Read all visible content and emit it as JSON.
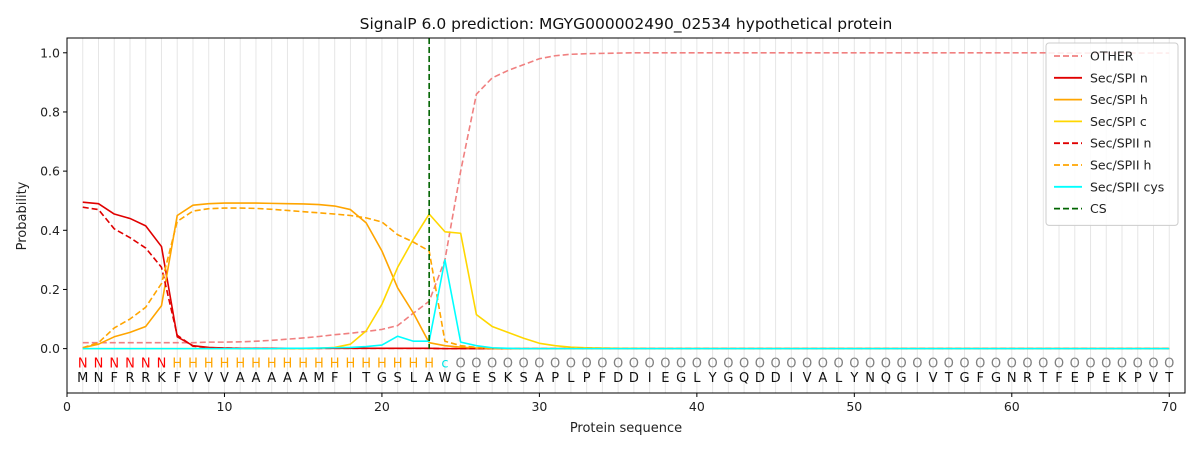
{
  "chart_data": {
    "type": "line",
    "title": "SignalP 6.0 prediction: MGYG000002490_02534 hypothetical protein",
    "xlabel": "Protein sequence",
    "ylabel": "Probability",
    "xlim": [
      0,
      71
    ],
    "ylim": [
      -0.15,
      1.05
    ],
    "xticks": [
      0,
      10,
      20,
      30,
      40,
      50,
      60,
      70
    ],
    "yticks": [
      0.0,
      0.2,
      0.4,
      0.6,
      0.8,
      1.0
    ],
    "ytick_labels": [
      "0.0",
      "0.2",
      "0.4",
      "0.6",
      "0.8",
      "1.0"
    ],
    "vertical_grid": true,
    "legend_position": "top-right",
    "sequence": [
      "M",
      "N",
      "F",
      "R",
      "R",
      "K",
      "F",
      "V",
      "V",
      "V",
      "A",
      "A",
      "A",
      "A",
      "A",
      "M",
      "F",
      "I",
      "T",
      "G",
      "S",
      "L",
      "A",
      "W",
      "G",
      "E",
      "S",
      "K",
      "S",
      "A",
      "P",
      "L",
      "P",
      "F",
      "D",
      "D",
      "I",
      "E",
      "G",
      "L",
      "Y",
      "G",
      "Q",
      "D",
      "D",
      "I",
      "V",
      "A",
      "L",
      "Y",
      "N",
      "Q",
      "G",
      "I",
      "V",
      "T",
      "G",
      "F",
      "G",
      "N",
      "R",
      "T",
      "F",
      "E",
      "P",
      "E",
      "K",
      "P",
      "V",
      "T"
    ],
    "region_labels": [
      "N",
      "N",
      "N",
      "N",
      "N",
      "N",
      "H",
      "H",
      "H",
      "H",
      "H",
      "H",
      "H",
      "H",
      "H",
      "H",
      "H",
      "H",
      "H",
      "H",
      "H",
      "H",
      "H",
      "C",
      "O",
      "O",
      "O",
      "O",
      "O",
      "O",
      "O",
      "O",
      "O",
      "O",
      "O",
      "O",
      "O",
      "O",
      "O",
      "O",
      "O",
      "O",
      "O",
      "O",
      "O",
      "O",
      "O",
      "O",
      "O",
      "O",
      "O",
      "O",
      "O",
      "O",
      "O",
      "O",
      "O",
      "O",
      "O",
      "O",
      "O",
      "O",
      "O",
      "O",
      "O",
      "O",
      "O",
      "O",
      "O",
      "O"
    ],
    "region_colors": {
      "N": "#ff0000",
      "H": "#ffa500",
      "C": "#00e5e5",
      "O": "#808080"
    },
    "cs_position": 23,
    "series": [
      {
        "name": "OTHER",
        "color": "#f08080",
        "dash": "6,3",
        "values": [
          0.02,
          0.02,
          0.02,
          0.02,
          0.02,
          0.02,
          0.02,
          0.02,
          0.022,
          0.022,
          0.023,
          0.025,
          0.028,
          0.032,
          0.036,
          0.041,
          0.047,
          0.052,
          0.058,
          0.065,
          0.078,
          0.12,
          0.16,
          0.3,
          0.6,
          0.86,
          0.915,
          0.94,
          0.96,
          0.98,
          0.99,
          0.995,
          0.997,
          0.998,
          0.999,
          1.0,
          1.0,
          1.0,
          1.0,
          1.0,
          1.0,
          1.0,
          1.0,
          1.0,
          1.0,
          1.0,
          1.0,
          1.0,
          1.0,
          1.0,
          1.0,
          1.0,
          1.0,
          1.0,
          1.0,
          1.0,
          1.0,
          1.0,
          1.0,
          1.0,
          1.0,
          1.0,
          0.999,
          0.999,
          0.999,
          0.999,
          0.999,
          0.999,
          0.999,
          0.999
        ]
      },
      {
        "name": "Sec/SPI n",
        "color": "#e00000",
        "dash": "",
        "values": [
          0.495,
          0.49,
          0.455,
          0.44,
          0.415,
          0.345,
          0.04,
          0.01,
          0.004,
          0.002,
          0.001,
          0.001,
          0.001,
          0.001,
          0.001,
          0.001,
          0.001,
          0.001,
          0.001,
          0.001,
          0.001,
          0.001,
          0.001,
          0.0,
          0.0,
          0.0,
          0.0,
          0.0,
          0.0,
          0.0,
          0.0,
          0.0,
          0.0,
          0.0,
          0.0,
          0.0,
          0.0,
          0.0,
          0.0,
          0.0,
          0.0,
          0.0,
          0.0,
          0.0,
          0.0,
          0.0,
          0.0,
          0.0,
          0.0,
          0.0,
          0.0,
          0.0,
          0.0,
          0.0,
          0.0,
          0.0,
          0.0,
          0.0,
          0.0,
          0.0,
          0.0,
          0.0,
          0.0,
          0.0,
          0.0,
          0.0,
          0.0,
          0.0,
          0.0,
          0.0
        ]
      },
      {
        "name": "Sec/SPI h",
        "color": "#ffa500",
        "dash": "",
        "values": [
          0.003,
          0.015,
          0.04,
          0.055,
          0.075,
          0.145,
          0.45,
          0.485,
          0.49,
          0.492,
          0.492,
          0.492,
          0.491,
          0.49,
          0.489,
          0.487,
          0.482,
          0.47,
          0.425,
          0.33,
          0.205,
          0.12,
          0.02,
          0.01,
          0.005,
          0.002,
          0.0,
          0.0,
          0.0,
          0.0,
          0.0,
          0.0,
          0.0,
          0.0,
          0.0,
          0.0,
          0.0,
          0.0,
          0.0,
          0.0,
          0.0,
          0.0,
          0.0,
          0.0,
          0.0,
          0.0,
          0.0,
          0.0,
          0.0,
          0.0,
          0.0,
          0.0,
          0.0,
          0.0,
          0.0,
          0.0,
          0.0,
          0.0,
          0.0,
          0.0,
          0.0,
          0.0,
          0.0,
          0.0,
          0.0,
          0.0,
          0.0,
          0.0,
          0.0,
          0.0
        ]
      },
      {
        "name": "Sec/SPI c",
        "color": "#ffd700",
        "dash": "",
        "values": [
          0.0,
          0.0,
          0.0,
          0.0,
          0.0,
          0.0,
          0.0,
          0.0,
          0.0,
          0.0,
          0.0,
          0.0,
          0.0,
          0.0,
          0.0,
          0.001,
          0.004,
          0.015,
          0.06,
          0.15,
          0.275,
          0.37,
          0.455,
          0.395,
          0.39,
          0.115,
          0.075,
          0.055,
          0.035,
          0.018,
          0.01,
          0.005,
          0.003,
          0.002,
          0.001,
          0.001,
          0.0,
          0.0,
          0.0,
          0.0,
          0.0,
          0.0,
          0.0,
          0.0,
          0.0,
          0.0,
          0.0,
          0.0,
          0.0,
          0.0,
          0.0,
          0.0,
          0.0,
          0.0,
          0.0,
          0.0,
          0.0,
          0.0,
          0.0,
          0.0,
          0.0,
          0.0,
          0.0,
          0.0,
          0.0,
          0.0,
          0.0,
          0.0,
          0.0,
          0.0
        ]
      },
      {
        "name": "Sec/SPII n",
        "color": "#e00000",
        "dash": "6,3",
        "values": [
          0.478,
          0.47,
          0.405,
          0.375,
          0.34,
          0.275,
          0.045,
          0.008,
          0.003,
          0.002,
          0.001,
          0.001,
          0.001,
          0.001,
          0.001,
          0.001,
          0.001,
          0.001,
          0.001,
          0.001,
          0.001,
          0.001,
          0.001,
          0.0,
          0.0,
          0.0,
          0.0,
          0.0,
          0.0,
          0.0,
          0.0,
          0.0,
          0.0,
          0.0,
          0.0,
          0.0,
          0.0,
          0.0,
          0.0,
          0.0,
          0.0,
          0.0,
          0.0,
          0.0,
          0.0,
          0.0,
          0.0,
          0.0,
          0.0,
          0.0,
          0.0,
          0.0,
          0.0,
          0.0,
          0.0,
          0.0,
          0.0,
          0.0,
          0.0,
          0.0,
          0.0,
          0.0,
          0.0,
          0.0,
          0.0,
          0.0,
          0.0,
          0.0,
          0.0,
          0.0
        ]
      },
      {
        "name": "Sec/SPII h",
        "color": "#ffa500",
        "dash": "6,3",
        "values": [
          0.003,
          0.02,
          0.07,
          0.1,
          0.14,
          0.22,
          0.43,
          0.465,
          0.473,
          0.475,
          0.475,
          0.474,
          0.471,
          0.467,
          0.463,
          0.459,
          0.455,
          0.45,
          0.442,
          0.428,
          0.385,
          0.36,
          0.33,
          0.025,
          0.01,
          0.004,
          0.0,
          0.0,
          0.0,
          0.0,
          0.0,
          0.0,
          0.0,
          0.0,
          0.0,
          0.0,
          0.0,
          0.0,
          0.0,
          0.0,
          0.0,
          0.0,
          0.0,
          0.0,
          0.0,
          0.0,
          0.0,
          0.0,
          0.0,
          0.0,
          0.0,
          0.0,
          0.0,
          0.0,
          0.0,
          0.0,
          0.0,
          0.0,
          0.0,
          0.0,
          0.0,
          0.0,
          0.0,
          0.0,
          0.0,
          0.0,
          0.0,
          0.0,
          0.0,
          0.0
        ]
      },
      {
        "name": "Sec/SPII cys",
        "color": "#00ffff",
        "dash": "",
        "values": [
          0.0,
          0.0,
          0.0,
          0.0,
          0.0,
          0.0,
          0.0,
          0.0,
          0.0,
          0.0,
          0.0,
          0.0,
          0.0,
          0.001,
          0.001,
          0.002,
          0.003,
          0.004,
          0.007,
          0.012,
          0.042,
          0.025,
          0.025,
          0.3,
          0.022,
          0.01,
          0.003,
          0.001,
          0.0,
          0.0,
          0.0,
          0.0,
          0.0,
          0.0,
          0.0,
          0.0,
          0.0,
          0.0,
          0.0,
          0.0,
          0.0,
          0.0,
          0.0,
          0.0,
          0.0,
          0.0,
          0.0,
          0.0,
          0.0,
          0.0,
          0.0,
          0.0,
          0.0,
          0.0,
          0.0,
          0.0,
          0.0,
          0.0,
          0.0,
          0.0,
          0.0,
          0.0,
          0.0,
          0.0,
          0.0,
          0.0,
          0.0,
          0.0,
          0.0,
          0.0
        ]
      }
    ],
    "legend": [
      {
        "name": "OTHER",
        "color": "#f08080",
        "dash": "6,3"
      },
      {
        "name": "Sec/SPI n",
        "color": "#e00000",
        "dash": ""
      },
      {
        "name": "Sec/SPI h",
        "color": "#ffa500",
        "dash": ""
      },
      {
        "name": "Sec/SPI c",
        "color": "#ffd700",
        "dash": ""
      },
      {
        "name": "Sec/SPII n",
        "color": "#e00000",
        "dash": "6,3"
      },
      {
        "name": "Sec/SPII h",
        "color": "#ffa500",
        "dash": "6,3"
      },
      {
        "name": "Sec/SPII cys",
        "color": "#00ffff",
        "dash": ""
      },
      {
        "name": "CS",
        "color": "#006400",
        "dash": "6,3"
      }
    ]
  }
}
